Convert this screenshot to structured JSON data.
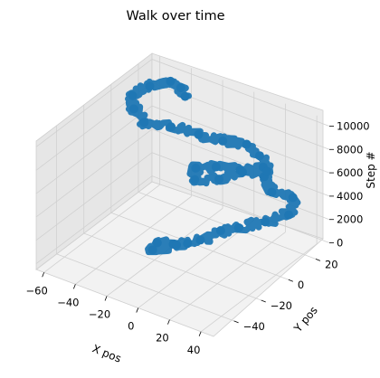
{
  "chart_data": {
    "type": "scatter",
    "projection": "3d",
    "title": "Walk over time",
    "xlabel": "X pos",
    "ylabel": "Y pos",
    "zlabel": "Step #",
    "x_ticks": [
      -60,
      -40,
      -20,
      0,
      20,
      40
    ],
    "y_ticks": [
      20,
      0,
      -20,
      -40
    ],
    "z_ticks": [
      0,
      2000,
      4000,
      6000,
      8000,
      10000
    ],
    "xlim": [
      -65,
      48
    ],
    "ylim": [
      -55,
      30
    ],
    "zlim": [
      -500,
      10500
    ],
    "grid": true,
    "marker_color": "#1f77b4",
    "series": [
      {
        "points": [
          [
            -12,
            -5,
            0
          ],
          [
            -15,
            -12,
            400
          ],
          [
            -20,
            -18,
            800
          ],
          [
            -16,
            -26,
            1100
          ],
          [
            -6,
            -20,
            1500
          ],
          [
            4,
            -14,
            1900
          ],
          [
            10,
            -6,
            2300
          ],
          [
            18,
            -2,
            2600
          ],
          [
            28,
            6,
            2900
          ],
          [
            36,
            14,
            3200
          ],
          [
            30,
            24,
            3500
          ],
          [
            20,
            20,
            3800
          ],
          [
            10,
            26,
            4100
          ],
          [
            -2,
            22,
            4400
          ],
          [
            -12,
            16,
            4700
          ],
          [
            -18,
            8,
            5000
          ],
          [
            -10,
            -2,
            5300
          ],
          [
            2,
            2,
            5600
          ],
          [
            10,
            10,
            5900
          ],
          [
            18,
            16,
            6200
          ],
          [
            24,
            12,
            6500
          ],
          [
            14,
            18,
            6800
          ],
          [
            4,
            20,
            7100
          ],
          [
            -6,
            14,
            7400
          ],
          [
            -18,
            10,
            7700
          ],
          [
            -32,
            6,
            8000
          ],
          [
            -44,
            0,
            8300
          ],
          [
            -54,
            4,
            8600
          ],
          [
            -60,
            10,
            8900
          ],
          [
            -56,
            18,
            9200
          ],
          [
            -48,
            24,
            9500
          ],
          [
            -38,
            20,
            9800
          ],
          [
            -30,
            14,
            10000
          ]
        ]
      }
    ]
  }
}
